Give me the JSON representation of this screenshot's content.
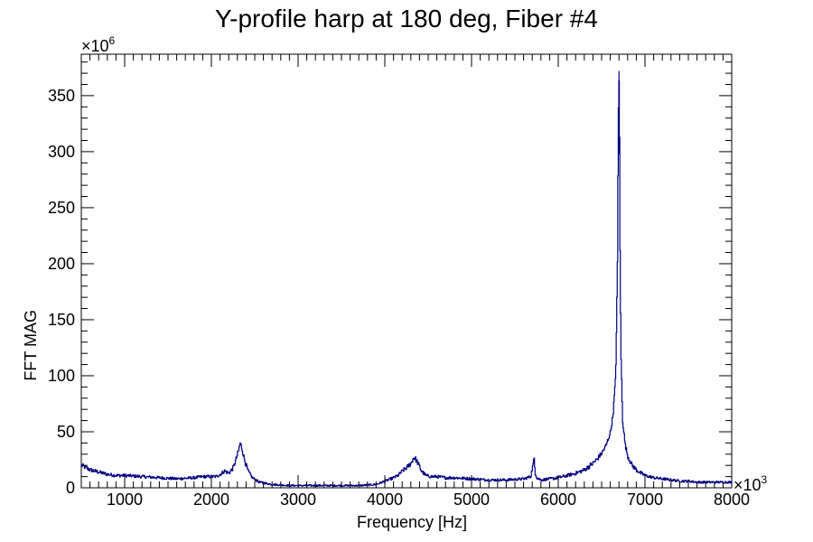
{
  "chart_data": {
    "type": "line",
    "title": "Y-profile harp at 180 deg, Fiber #4",
    "xlabel": "Frequency [Hz]",
    "ylabel": "FFT MAG",
    "x_multiplier": {
      "base": "×10",
      "exp": "3"
    },
    "y_multiplier": {
      "base": "×10",
      "exp": "6"
    },
    "xlim": [
      500,
      8000
    ],
    "ylim": [
      0,
      387
    ],
    "x_ticks": [
      1000,
      2000,
      3000,
      4000,
      5000,
      6000,
      7000,
      8000
    ],
    "y_ticks": [
      0,
      50,
      100,
      150,
      200,
      250,
      300,
      350
    ],
    "grid": false,
    "legend": "none",
    "line_color": "#000080",
    "series": [
      {
        "x": [
          500,
          600,
          700,
          800,
          900,
          1000,
          1200,
          1400,
          1600,
          1800,
          1900,
          2000,
          2050,
          2100,
          2150,
          2200,
          2250,
          2280,
          2310,
          2330,
          2350,
          2380,
          2420,
          2470,
          2550,
          2700,
          2900,
          3100,
          3300,
          3500,
          3700,
          3900,
          4000,
          4100,
          4150,
          4200,
          4250,
          4300,
          4330,
          4350,
          4380,
          4420,
          4470,
          4530,
          4600,
          4700,
          4800,
          5000,
          5200,
          5400,
          5600,
          5680,
          5700,
          5720,
          5730,
          5750,
          5800,
          5900,
          6000,
          6100,
          6200,
          6300,
          6400,
          6450,
          6500,
          6550,
          6600,
          6630,
          6660,
          6680,
          6690,
          6700,
          6705,
          6710,
          6720,
          6740,
          6770,
          6800,
          6850,
          6900,
          6950,
          7000,
          7100,
          7200,
          7300,
          7400,
          7500,
          7600,
          7700,
          7800,
          7900,
          8000
        ],
        "y": [
          20,
          16,
          14,
          12,
          11,
          11,
          10,
          9,
          8,
          9,
          10,
          10,
          10,
          12,
          15,
          13,
          18,
          25,
          33,
          40,
          35,
          25,
          15,
          9,
          5,
          3,
          2,
          2,
          2,
          2,
          2,
          3,
          6,
          9,
          11,
          15,
          18,
          22,
          27,
          26,
          22,
          15,
          11,
          10,
          10,
          9,
          9,
          8,
          7,
          7,
          8,
          10,
          18,
          26,
          14,
          9,
          7,
          8,
          9,
          11,
          13,
          16,
          22,
          26,
          31,
          38,
          50,
          66,
          100,
          200,
          330,
          372,
          300,
          210,
          120,
          60,
          38,
          28,
          20,
          16,
          13,
          11,
          9,
          8,
          7,
          6,
          6,
          5,
          5,
          5,
          5,
          5
        ]
      }
    ]
  }
}
